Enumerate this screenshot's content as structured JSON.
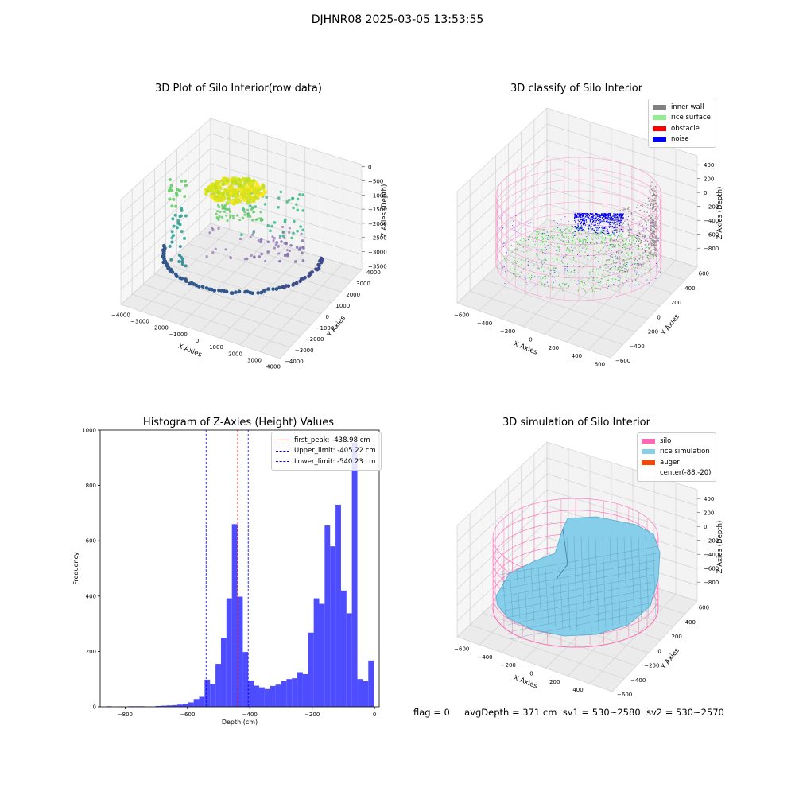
{
  "figure_title": "DJHNR08 2025-03-05 13:53:55",
  "status_line": {
    "flag": "flag = 0",
    "avg_depth": "avgDepth = 371 cm",
    "sv1": "sv1 = 530~2580",
    "sv2": "sv2 = 530~2570"
  },
  "chart_data": [
    {
      "type": "scatter",
      "title": "3D Plot of Silo Interior(row data)",
      "xlabel": "X Axies",
      "ylabel": "Y Axies",
      "zlabel": "Z Axies (Depth)",
      "x_ticks": [
        "−4000",
        "−3000",
        "−2000",
        "−1000",
        "0",
        "1000",
        "2000",
        "3000",
        "4000"
      ],
      "y_ticks": [
        "−4000",
        "−3000",
        "−2000",
        "−1000",
        "0",
        "1000",
        "2000",
        "3000",
        "4000"
      ],
      "z_ticks": [
        "0",
        "−500",
        "−1000",
        "−1500",
        "−2000",
        "−2500",
        "−3000",
        "−3500"
      ],
      "xlim": [
        -4000,
        4000
      ],
      "ylim": [
        -4000,
        4000
      ],
      "zlim": [
        -3700,
        200
      ],
      "colormap": "viridis",
      "grid": true
    },
    {
      "type": "scatter",
      "title": "3D classify of Silo Interior",
      "xlabel": "X Axies",
      "ylabel": "Y Axies",
      "zlabel": "Z Axies (Depth)",
      "x_ticks": [
        "−600",
        "−400",
        "−200",
        "0",
        "200",
        "400",
        "600"
      ],
      "y_ticks": [
        "−600",
        "−400",
        "−200",
        "0",
        "200",
        "400",
        "600"
      ],
      "z_ticks": [
        "400",
        "200",
        "0",
        "−200",
        "−400",
        "−600",
        "−800"
      ],
      "legend": [
        {
          "label": "inner wall",
          "color": "#808080"
        },
        {
          "label": "rice surface",
          "color": "#90ee90"
        },
        {
          "label": "obstacle",
          "color": "#ff0000"
        },
        {
          "label": "noise",
          "color": "#0000ff"
        }
      ],
      "legend_placement": "top-right",
      "grid": true
    },
    {
      "type": "bar",
      "title": "Histogram of Z-Axies (Height) Values",
      "xlabel": "Depth (cm)",
      "ylabel": "Frequency",
      "xlim": [
        -880,
        15
      ],
      "ylim": [
        0,
        1000
      ],
      "x_ticks": [
        "−800",
        "−600",
        "−400",
        "−200",
        "0"
      ],
      "x_tick_values": [
        -800,
        -600,
        -400,
        -200,
        0
      ],
      "y_ticks": [
        "0",
        "200",
        "400",
        "600",
        "800",
        "1000"
      ],
      "y_tick_values": [
        0,
        200,
        400,
        600,
        800,
        1000
      ],
      "bar_color": "#4d4dff",
      "bin_edges": [
        -860,
        -842.5,
        -825,
        -807.5,
        -790,
        -772.5,
        -755,
        -737.5,
        -720,
        -702.5,
        -685,
        -667.5,
        -650,
        -632.5,
        -615,
        -597.5,
        -580,
        -562.5,
        -545,
        -527.5,
        -510,
        -492.5,
        -475,
        -457.5,
        -440,
        -422.5,
        -405,
        -387.5,
        -370,
        -352.5,
        -335,
        -317.5,
        -300,
        -282.5,
        -265,
        -247.5,
        -230,
        -212.5,
        -195,
        -177.5,
        -160,
        -142.5,
        -125,
        -107.5,
        -90,
        -72.5,
        -55,
        -37.5,
        -20,
        -2.5
      ],
      "counts": [
        2,
        0,
        1,
        0,
        2,
        2,
        2,
        1,
        1,
        3,
        4,
        5,
        6,
        8,
        10,
        16,
        28,
        36,
        98,
        82,
        155,
        250,
        392,
        660,
        398,
        198,
        95,
        76,
        70,
        64,
        75,
        80,
        93,
        100,
        103,
        125,
        118,
        268,
        392,
        372,
        655,
        580,
        730,
        420,
        338,
        955,
        100,
        92,
        167
      ],
      "vlines": [
        {
          "label": "first_peak: -438.98 cm",
          "x": -438.98,
          "color": "#ff0000"
        },
        {
          "label": "Upper_limit: -405.22 cm",
          "x": -405.22,
          "color": "#0000ff"
        },
        {
          "label": "Lower_limit: -540.23 cm",
          "x": -540.23,
          "color": "#0000ff"
        }
      ],
      "legend_placement": "top-right"
    },
    {
      "type": "area",
      "title": "3D simulation of Silo Interior",
      "xlabel": "X Axies",
      "ylabel": "Y Axies",
      "zlabel": "Z Axies (Depth)",
      "x_ticks": [
        "−600",
        "−400",
        "−200",
        "0",
        "200",
        "400"
      ],
      "y_ticks": [
        "−600",
        "−400",
        "−200",
        "0",
        "200",
        "400",
        "600"
      ],
      "z_ticks": [
        "400",
        "200",
        "0",
        "−200",
        "−400",
        "−600",
        "−800"
      ],
      "legend": [
        {
          "label": "silo",
          "color": "#ff69b4"
        },
        {
          "label": "rice simulation",
          "color": "#87ceeb"
        },
        {
          "label": "auger",
          "color": "#ff4500"
        },
        {
          "label": "center(-88,-20)",
          "color": "#ffffff"
        }
      ],
      "legend_placement": "top-right",
      "grid": true
    }
  ]
}
